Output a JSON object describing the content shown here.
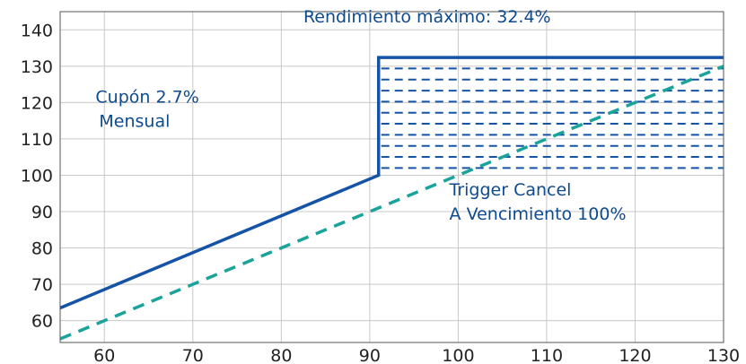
{
  "chart_data": {
    "type": "line",
    "xlim": [
      55,
      130
    ],
    "ylim": [
      54,
      145
    ],
    "x_ticks": [
      60,
      70,
      80,
      90,
      100,
      110,
      120,
      130
    ],
    "y_ticks": [
      60,
      70,
      80,
      90,
      100,
      110,
      120,
      130,
      140
    ],
    "grid": true,
    "colors": {
      "product": "#1553a6",
      "underlying": "#1aa39b",
      "hatch": "#1553a6",
      "text": "#0d4a8f"
    },
    "series": [
      {
        "style": "solid",
        "points": [
          [
            55,
            63.5
          ],
          [
            91,
            100
          ],
          [
            91,
            132.4
          ],
          [
            130,
            132.4
          ]
        ]
      },
      {
        "style": "dashed",
        "points": [
          [
            55,
            55
          ],
          [
            130,
            130
          ]
        ]
      }
    ],
    "hatch_region": {
      "x": [
        91,
        130
      ],
      "y": [
        102,
        132.4
      ],
      "rows": 11
    },
    "annotations": [
      {
        "id": "max-yield",
        "lines": [
          "Rendimiento máximo: 32.4%"
        ],
        "x": 82.5,
        "y": 142,
        "anchor": "start"
      },
      {
        "id": "coupon",
        "lines": [
          "Cupón 2.7%",
          "Mensual"
        ],
        "x": 59,
        "y": 120,
        "anchor": "start"
      },
      {
        "id": "trigger",
        "lines": [
          "Trigger Cancel",
          "A Vencimiento 100%"
        ],
        "x": 99,
        "y": 94.5,
        "anchor": "start"
      }
    ]
  }
}
